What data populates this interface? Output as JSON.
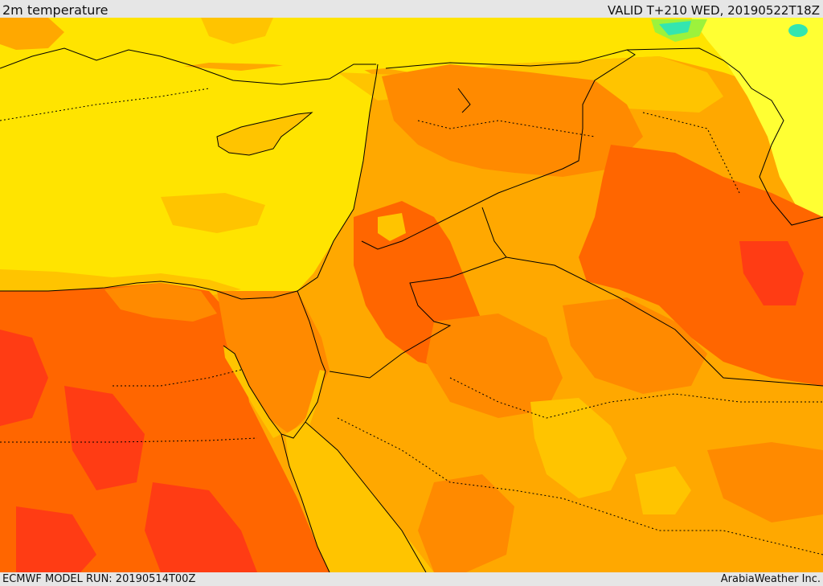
{
  "header": {
    "product_title": "2m temperature",
    "valid_time": "VALID T+210 WED, 20190522T18Z"
  },
  "footer": {
    "model_run": "ECMWF MODEL RUN: 20190514T00Z",
    "provider": "ArabiaWeather Inc."
  },
  "map": {
    "variable": "2m temperature",
    "colors": {
      "light_yellow": "#ffff33",
      "yellow": "#ffe400",
      "amber": "#ffc400",
      "orange": "#ffa800",
      "dark_orange": "#ff8a00",
      "red_orange": "#ff6600",
      "red": "#ff3c14",
      "green": "#9cf23c",
      "cyan": "#33e6b0",
      "border": "#000000"
    }
  }
}
